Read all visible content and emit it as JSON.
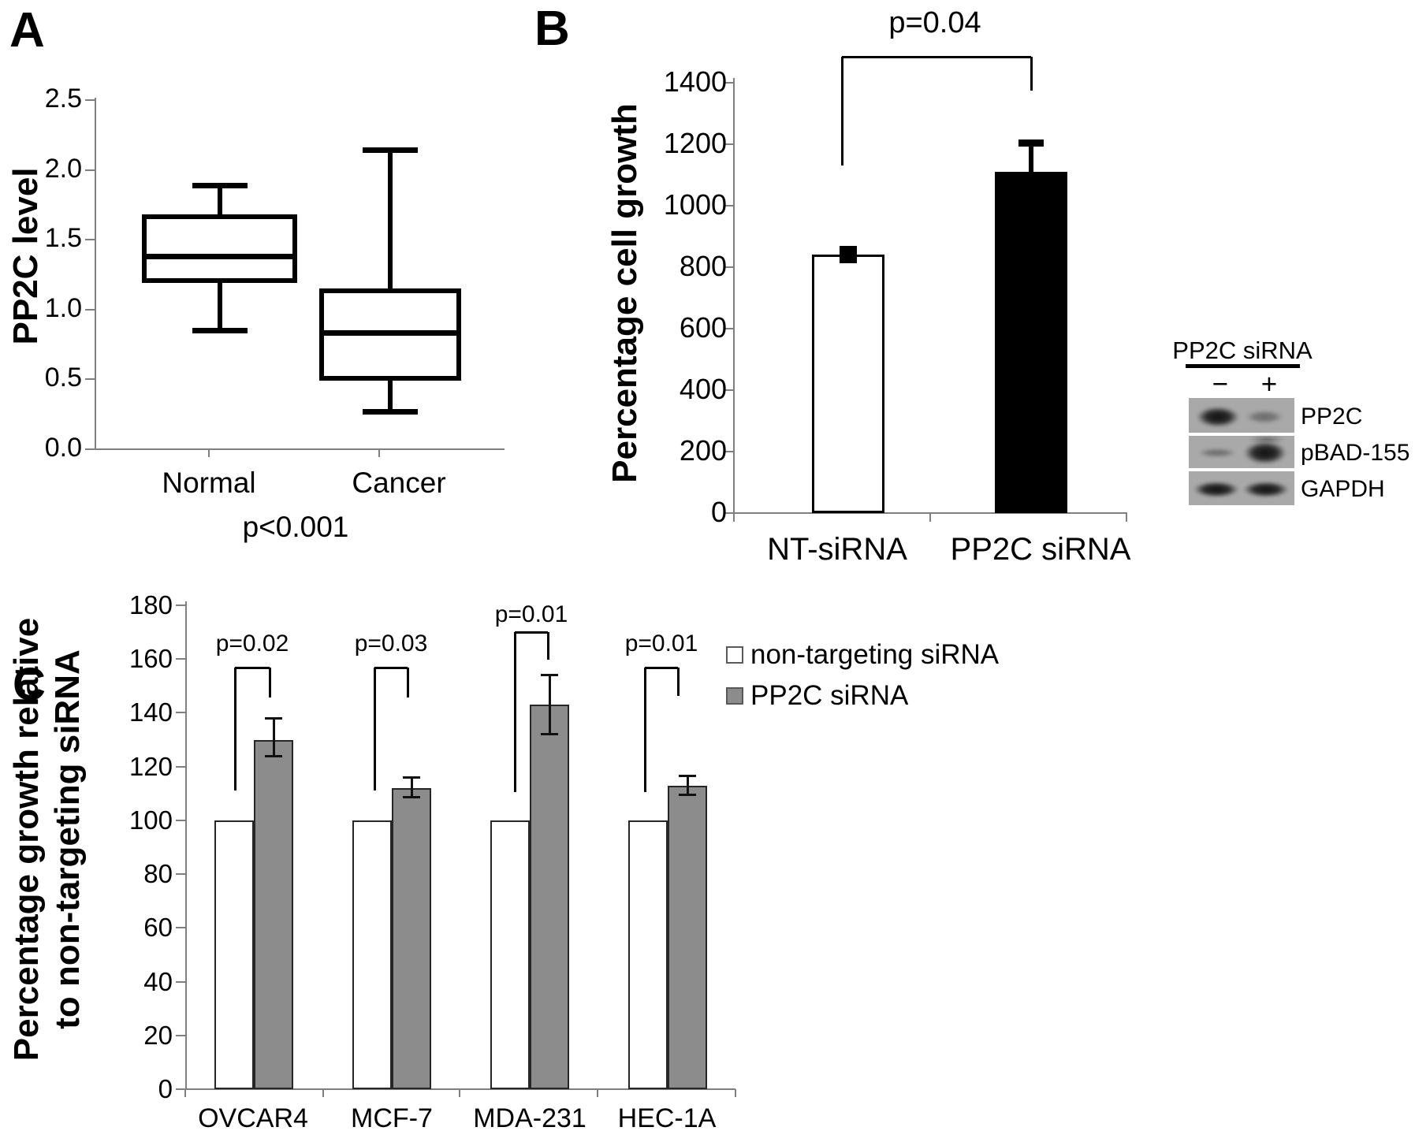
{
  "figure": {
    "panel_tags": {
      "a": "A",
      "b": "B",
      "c": "C"
    }
  },
  "chart_data": [
    {
      "id": "panel-A",
      "type": "box",
      "title": "",
      "xlabel": "",
      "ylabel": "PP2C level",
      "categories": [
        "Normal",
        "Cancer"
      ],
      "boxes": [
        {
          "whisker_low": 0.85,
          "q1": 1.19,
          "median": 1.38,
          "q3": 1.68,
          "whisker_high": 1.89
        },
        {
          "whisker_low": 0.27,
          "q1": 0.49,
          "median": 0.83,
          "q3": 1.15,
          "whisker_high": 2.14
        }
      ],
      "ylim": [
        0,
        2.5
      ],
      "yticks": [
        "0.0",
        "0.5",
        "1.0",
        "1.5",
        "2.0",
        "2.5"
      ],
      "annotation": "p<0.001",
      "grid": false,
      "legend_position": "none"
    },
    {
      "id": "panel-B",
      "type": "bar",
      "title": "",
      "xlabel": "",
      "ylabel": "Percentage cell growth",
      "categories": [
        "NT-siRNA",
        "PP2C siRNA"
      ],
      "values": [
        840,
        1110
      ],
      "error_plus": [
        10,
        95
      ],
      "error_style": [
        "filled-square",
        "t-bar"
      ],
      "colors": [
        "#ffffff",
        "#000000"
      ],
      "ylim": [
        0,
        1400
      ],
      "yticks": [
        "0",
        "200",
        "400",
        "600",
        "800",
        "1000",
        "1200",
        "1400"
      ],
      "significance": {
        "label": "p=0.04",
        "between": [
          "NT-siRNA",
          "PP2C siRNA"
        ]
      },
      "grid": false,
      "legend_position": "none"
    },
    {
      "id": "panel-C",
      "type": "grouped-bar",
      "title": "",
      "xlabel": "",
      "ylabel": [
        "Percentage growth relative",
        "to non-targeting siRNA"
      ],
      "categories": [
        "OVCAR4",
        "MCF-7",
        "MDA-231",
        "HEC-1A"
      ],
      "series": [
        {
          "name": "non-targeting siRNA",
          "color": "#ffffff",
          "values": [
            100,
            100,
            100,
            100
          ]
        },
        {
          "name": "PP2C siRNA",
          "color": "#8c8c8c",
          "values": [
            130,
            112,
            143,
            113
          ],
          "error_plus": [
            8,
            4,
            11,
            3.5
          ],
          "error_minus": [
            6,
            3.5,
            11,
            3.5
          ]
        }
      ],
      "significance": [
        {
          "group": "OVCAR4",
          "label": "p=0.02"
        },
        {
          "group": "MCF-7",
          "label": "p=0.03"
        },
        {
          "group": "MDA-231",
          "label": "p=0.01"
        },
        {
          "group": "HEC-1A",
          "label": "p=0.01"
        }
      ],
      "ylim": [
        0,
        180
      ],
      "yticks": [
        "0",
        "20",
        "40",
        "60",
        "80",
        "100",
        "120",
        "140",
        "160",
        "180"
      ],
      "legend": {
        "position": "right",
        "entries": [
          {
            "label": "non-targeting siRNA",
            "color": "#ffffff"
          },
          {
            "label": "PP2C siRNA",
            "color": "#8c8c8c"
          }
        ]
      },
      "grid": false
    }
  ],
  "blot": {
    "title": "PP2C siRNA",
    "lane_labels": [
      "−",
      "+"
    ],
    "rows": [
      {
        "label": "PP2C",
        "lanes": [
          "strong",
          "faint"
        ]
      },
      {
        "label": "pBAD-155",
        "lanes": [
          "faint",
          "strong"
        ]
      },
      {
        "label": "GAPDH",
        "lanes": [
          "strong",
          "strong"
        ]
      }
    ]
  }
}
